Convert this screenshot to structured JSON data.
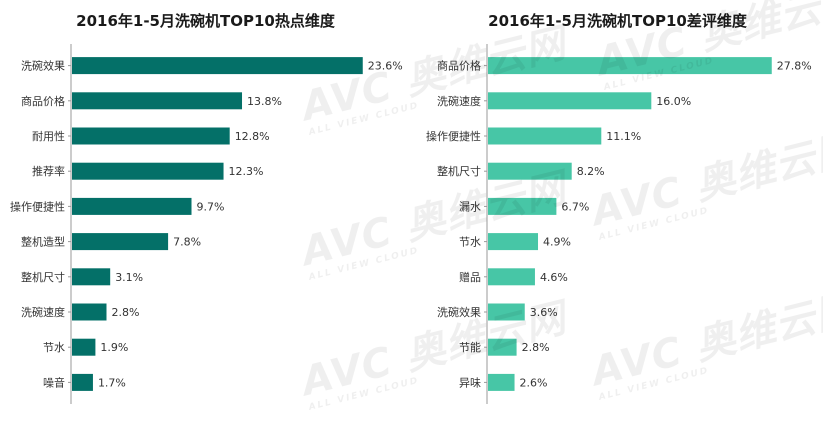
{
  "watermark": {
    "brand": "AVC",
    "cn_name": "奥维云网",
    "en_name": "ALL VIEW CLOUD"
  },
  "chart_data": [
    {
      "type": "bar",
      "orientation": "horizontal",
      "title": "2016年1-5月洗碗机TOP10热点维度",
      "categories": [
        "洗碗效果",
        "商品价格",
        "耐用性",
        "推荐率",
        "操作便捷性",
        "整机造型",
        "整机尺寸",
        "洗碗速度",
        "节水",
        "噪音"
      ],
      "values": [
        23.6,
        13.8,
        12.8,
        12.3,
        9.7,
        7.8,
        3.1,
        2.8,
        1.9,
        1.7
      ],
      "value_suffix": "%",
      "xlim": [
        0,
        25
      ],
      "color": "#047068",
      "grid": false,
      "legend": "none"
    },
    {
      "type": "bar",
      "orientation": "horizontal",
      "title": "2016年1-5月洗碗机TOP10差评维度",
      "categories": [
        "商品价格",
        "洗碗速度",
        "操作便捷性",
        "整机尺寸",
        "漏水",
        "节水",
        "赠品",
        "洗碗效果",
        "节能",
        "异味"
      ],
      "values": [
        27.8,
        16.0,
        11.1,
        8.2,
        6.7,
        4.9,
        4.6,
        3.6,
        2.8,
        2.6
      ],
      "value_suffix": "%",
      "xlim": [
        0,
        29
      ],
      "color": "#47c6a6",
      "grid": false,
      "legend": "none"
    }
  ]
}
